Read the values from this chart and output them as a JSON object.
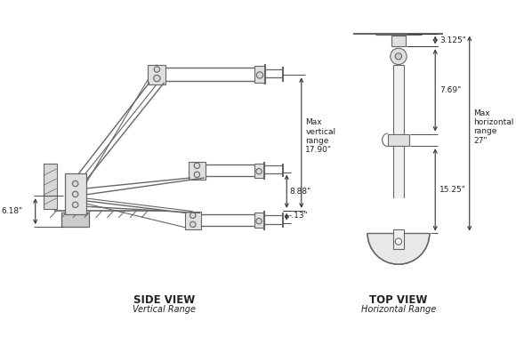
{
  "bg_color": "#ffffff",
  "lc": "#666666",
  "dc": "#333333",
  "tc": "#222222",
  "fig_w": 5.8,
  "fig_h": 3.79,
  "dpi": 100,
  "side_view_label": "SIDE VIEW",
  "side_view_sub": "Vertical Range",
  "top_view_label": "TOP VIEW",
  "top_view_sub": "Horizontal Range",
  "dim_6_18": "6.18\"",
  "dim_neg13": "-.13\"",
  "dim_8_88": "8.88\"",
  "dim_max_v": "Max\nvertical\nrange\n17.90\"",
  "dim_3_125": "3.125\"",
  "dim_7_69": "7.69\"",
  "dim_15_25": "15.25\"",
  "dim_max_h": "Max\nhorizontal\nrange\n27\""
}
